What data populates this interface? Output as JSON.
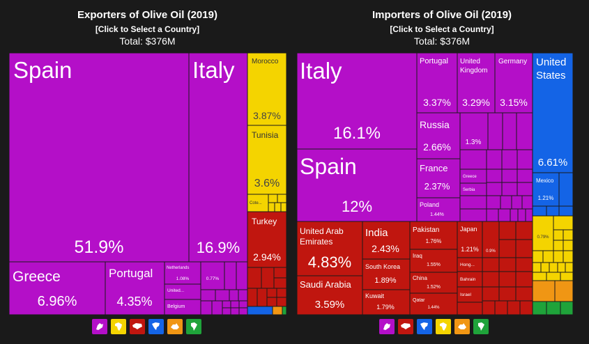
{
  "colors": {
    "europe": "#b40fc8",
    "africa": "#f4d400",
    "asia": "#c0160f",
    "north_america": "#1464e6",
    "oceania": "#f09614",
    "south_america": "#1fa33a",
    "background": "#1a1a1a"
  },
  "exporters": {
    "title": "Exporters of Olive Oil (2019)",
    "subtitle": "[Click to Select a Country]",
    "total": "Total: $376M"
  },
  "importers": {
    "title": "Importers of Olive Oil (2019)",
    "subtitle": "[Click to Select a Country]",
    "total": "Total: $376M"
  },
  "legend_icons": {
    "exporters": [
      "europe-icon",
      "africa-icon",
      "asia-icon",
      "north-america-icon",
      "oceania-icon",
      "south-america-icon"
    ],
    "importers": [
      "europe-icon",
      "asia-icon",
      "north-america-icon",
      "africa-icon",
      "oceania-icon",
      "south-america-icon"
    ]
  },
  "chart_data": [
    {
      "type": "treemap",
      "title": "Exporters of Olive Oil (2019)",
      "total": "Total: $376M",
      "items": [
        {
          "name": "Spain",
          "value": "51.9%",
          "region": "europe"
        },
        {
          "name": "Italy",
          "value": "16.9%",
          "region": "europe"
        },
        {
          "name": "Greece",
          "value": "6.96%",
          "region": "europe"
        },
        {
          "name": "Portugal",
          "value": "4.35%",
          "region": "europe"
        },
        {
          "name": "Netherlands",
          "value": "1.08%",
          "region": "europe"
        },
        {
          "name": "United...",
          "value": "",
          "region": "europe"
        },
        {
          "name": "Belgium",
          "value": "",
          "region": "europe"
        },
        {
          "name": "",
          "value": "0.77%",
          "region": "europe"
        },
        {
          "name": "Morocco",
          "value": "3.87%",
          "region": "africa"
        },
        {
          "name": "Tunisia",
          "value": "3.6%",
          "region": "africa"
        },
        {
          "name": "Cote...",
          "value": "",
          "region": "africa"
        },
        {
          "name": "Turkey",
          "value": "2.94%",
          "region": "asia"
        }
      ]
    },
    {
      "type": "treemap",
      "title": "Importers of Olive Oil (2019)",
      "total": "Total: $376M",
      "items": [
        {
          "name": "Italy",
          "value": "16.1%",
          "region": "europe"
        },
        {
          "name": "Spain",
          "value": "12%",
          "region": "europe"
        },
        {
          "name": "Portugal",
          "value": "3.37%",
          "region": "europe"
        },
        {
          "name": "United Kingdom",
          "value": "3.29%",
          "region": "europe"
        },
        {
          "name": "Germany",
          "value": "3.15%",
          "region": "europe"
        },
        {
          "name": "Russia",
          "value": "2.66%",
          "region": "europe"
        },
        {
          "name": "",
          "value": "1.3%",
          "region": "europe"
        },
        {
          "name": "France",
          "value": "2.37%",
          "region": "europe"
        },
        {
          "name": "Greece",
          "value": "",
          "region": "europe"
        },
        {
          "name": "Serbia",
          "value": "",
          "region": "europe"
        },
        {
          "name": "Poland",
          "value": "1.44%",
          "region": "europe"
        },
        {
          "name": "United Arab Emirates",
          "value": "4.83%",
          "region": "asia"
        },
        {
          "name": "Saudi Arabia",
          "value": "3.59%",
          "region": "asia"
        },
        {
          "name": "India",
          "value": "2.43%",
          "region": "asia"
        },
        {
          "name": "South Korea",
          "value": "1.89%",
          "region": "asia"
        },
        {
          "name": "Kuwait",
          "value": "1.79%",
          "region": "asia"
        },
        {
          "name": "Pakistan",
          "value": "1.76%",
          "region": "asia"
        },
        {
          "name": "Iraq",
          "value": "1.55%",
          "region": "asia"
        },
        {
          "name": "China",
          "value": "1.52%",
          "region": "asia"
        },
        {
          "name": "Qatar",
          "value": "1.44%",
          "region": "asia"
        },
        {
          "name": "Japan",
          "value": "1.21%",
          "region": "asia"
        },
        {
          "name": "",
          "value": "0.9%",
          "region": "asia"
        },
        {
          "name": "Hong...",
          "value": "",
          "region": "asia"
        },
        {
          "name": "Bahrain",
          "value": "",
          "region": "asia"
        },
        {
          "name": "Israel",
          "value": "",
          "region": "asia"
        },
        {
          "name": "United States",
          "value": "6.61%",
          "region": "north_america"
        },
        {
          "name": "Mexico",
          "value": "1.21%",
          "region": "north_america"
        },
        {
          "name": "",
          "value": "0.79%",
          "region": "africa"
        }
      ]
    }
  ]
}
